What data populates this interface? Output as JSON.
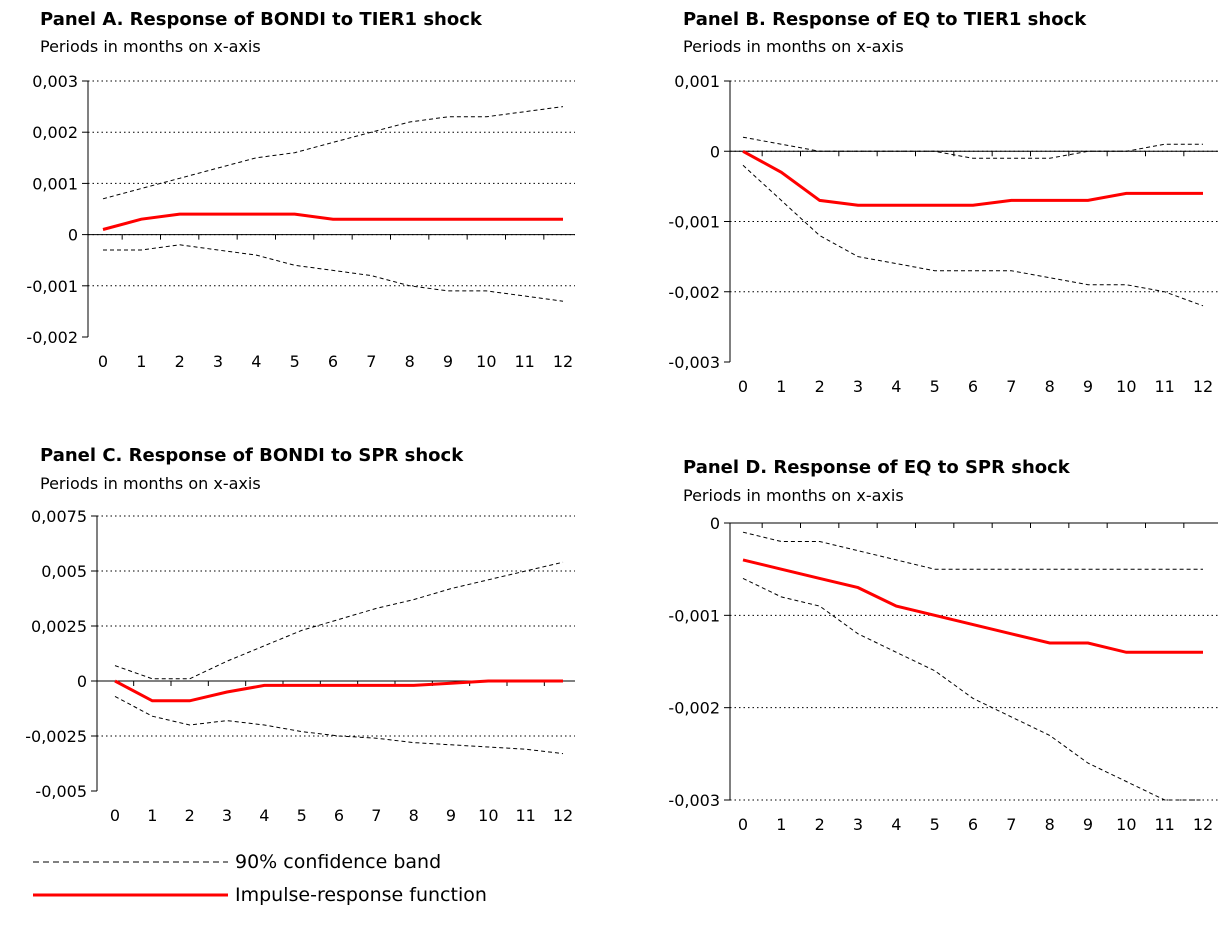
{
  "colors": {
    "irf": "#ff0000",
    "band": "#000000",
    "grid": "#000000"
  },
  "legend": {
    "band_label": "90% confidence band",
    "irf_label": "Impulse-response function"
  },
  "chart_data": [
    {
      "type": "line",
      "title": "Panel A. Response of BONDI to TIER1 shock",
      "subtitle": "Periods in months on x-axis",
      "x": [
        0,
        1,
        2,
        3,
        4,
        5,
        6,
        7,
        8,
        9,
        10,
        11,
        12
      ],
      "x_tick_labels": [
        "0",
        "1",
        "2",
        "3",
        "4",
        "5",
        "6",
        "7",
        "8",
        "9",
        "10",
        "11",
        "12"
      ],
      "y_tick_labels": [
        "0,003",
        "0,002",
        "0,001",
        "0",
        "-0,001",
        "-0,002"
      ],
      "ylim": [
        -0.002,
        0.003
      ],
      "yticks": [
        -0.002,
        -0.001,
        0,
        0.001,
        0.002,
        0.003
      ],
      "grid": "horizontal dotted",
      "series": [
        {
          "name": "90% confidence band",
          "style": "band",
          "values": [
            0.0007,
            0.0009,
            0.0011,
            0.0013,
            0.0015,
            0.0016,
            0.0018,
            0.002,
            0.0022,
            0.0023,
            0.0023,
            0.0024,
            0.0025
          ]
        },
        {
          "name": "90% confidence band",
          "style": "band",
          "values": [
            -0.0003,
            -0.0003,
            -0.0002,
            -0.0003,
            -0.0004,
            -0.0006,
            -0.0007,
            -0.0008,
            -0.001,
            -0.0011,
            -0.0011,
            -0.0012,
            -0.0013
          ]
        },
        {
          "name": "Impulse-response function",
          "style": "irf",
          "values": [
            0.0001,
            0.0003,
            0.0004,
            0.0004,
            0.0004,
            0.0004,
            0.0003,
            0.0003,
            0.0003,
            0.0003,
            0.0003,
            0.0003,
            0.0003
          ]
        }
      ]
    },
    {
      "type": "line",
      "title": "Panel B. Response of EQ to TIER1 shock",
      "subtitle": "Periods in months on x-axis",
      "x": [
        0,
        1,
        2,
        3,
        4,
        5,
        6,
        7,
        8,
        9,
        10,
        11,
        12
      ],
      "x_tick_labels": [
        "0",
        "1",
        "2",
        "3",
        "4",
        "5",
        "6",
        "7",
        "8",
        "9",
        "10",
        "11",
        "12"
      ],
      "y_tick_labels": [
        "0,001",
        "0",
        "-0,001",
        "-0,002",
        "-0,003"
      ],
      "ylim": [
        -0.003,
        0.001
      ],
      "yticks": [
        -0.003,
        -0.002,
        -0.001,
        0,
        0.001
      ],
      "grid": "horizontal dotted",
      "series": [
        {
          "name": "90% confidence band",
          "style": "band",
          "values": [
            0.0002,
            0.0001,
            0,
            0,
            0,
            0,
            -0.0001,
            -0.0001,
            -0.0001,
            0,
            0,
            0.0001,
            0.0001
          ]
        },
        {
          "name": "90% confidence band",
          "style": "band",
          "values": [
            -0.0002,
            -0.0007,
            -0.0012,
            -0.0015,
            -0.0016,
            -0.0017,
            -0.0017,
            -0.0017,
            -0.0018,
            -0.0019,
            -0.0019,
            -0.002,
            -0.0022
          ]
        },
        {
          "name": "Impulse-response function",
          "style": "irf",
          "values": [
            0,
            -0.0003,
            -0.0007,
            -0.00077,
            -0.00077,
            -0.00077,
            -0.00077,
            -0.0007,
            -0.0007,
            -0.0007,
            -0.0006,
            -0.0006,
            -0.0006
          ]
        }
      ]
    },
    {
      "type": "line",
      "title": "Panel C. Response of BONDI to SPR shock",
      "subtitle": "Periods in months on x-axis",
      "x": [
        0,
        1,
        2,
        3,
        4,
        5,
        6,
        7,
        8,
        9,
        10,
        11,
        12
      ],
      "x_tick_labels": [
        "0",
        "1",
        "2",
        "3",
        "4",
        "5",
        "6",
        "7",
        "8",
        "9",
        "10",
        "11",
        "12"
      ],
      "y_tick_labels": [
        "0,0075",
        "0,005",
        "0,0025",
        "0",
        "-0,0025",
        "-0,005"
      ],
      "ylim": [
        -0.005,
        0.0075
      ],
      "yticks": [
        -0.005,
        -0.0025,
        0,
        0.0025,
        0.005,
        0.0075
      ],
      "grid": "horizontal dotted",
      "series": [
        {
          "name": "90% confidence band",
          "style": "band",
          "values": [
            0.0007,
            0.0001,
            0.0001,
            0.0009,
            0.0016,
            0.0023,
            0.0028,
            0.0033,
            0.0037,
            0.0042,
            0.0046,
            0.005,
            0.0054
          ]
        },
        {
          "name": "90% confidence band",
          "style": "band",
          "values": [
            -0.0007,
            -0.0016,
            -0.002,
            -0.0018,
            -0.002,
            -0.0023,
            -0.0025,
            -0.0026,
            -0.0028,
            -0.0029,
            -0.003,
            -0.0031,
            -0.0033
          ]
        },
        {
          "name": "Impulse-response function",
          "style": "irf",
          "values": [
            0,
            -0.0009,
            -0.0009,
            -0.0005,
            -0.0002,
            -0.0002,
            -0.0002,
            -0.0002,
            -0.0002,
            -0.0001,
            0,
            0,
            0
          ]
        }
      ]
    },
    {
      "type": "line",
      "title": "Panel D. Response of EQ to SPR shock",
      "subtitle": "Periods in months on x-axis",
      "x": [
        0,
        1,
        2,
        3,
        4,
        5,
        6,
        7,
        8,
        9,
        10,
        11,
        12
      ],
      "x_tick_labels": [
        "0",
        "1",
        "2",
        "3",
        "4",
        "5",
        "6",
        "7",
        "8",
        "9",
        "10",
        "11",
        "12"
      ],
      "y_tick_labels": [
        "0",
        "-0,001",
        "-0,002",
        "-0,003"
      ],
      "ylim": [
        -0.003,
        0
      ],
      "yticks": [
        -0.003,
        -0.002,
        -0.001,
        0
      ],
      "grid": "horizontal dotted",
      "series": [
        {
          "name": "90% confidence band",
          "style": "band",
          "values": [
            -0.0001,
            -0.0002,
            -0.0002,
            -0.0003,
            -0.0004,
            -0.0005,
            -0.0005,
            -0.0005,
            -0.0005,
            -0.0005,
            -0.0005,
            -0.0005,
            -0.0005
          ]
        },
        {
          "name": "90% confidence band",
          "style": "band",
          "values": [
            -0.0006,
            -0.0008,
            -0.0009,
            -0.0012,
            -0.0014,
            -0.0016,
            -0.0019,
            -0.0021,
            -0.0023,
            -0.0026,
            -0.0028,
            -0.003,
            -0.003
          ]
        },
        {
          "name": "Impulse-response function",
          "style": "irf",
          "values": [
            -0.0004,
            -0.0005,
            -0.0006,
            -0.0007,
            -0.0009,
            -0.001,
            -0.0011,
            -0.0012,
            -0.0013,
            -0.0013,
            -0.0014,
            -0.0014,
            -0.0014
          ]
        }
      ]
    }
  ]
}
